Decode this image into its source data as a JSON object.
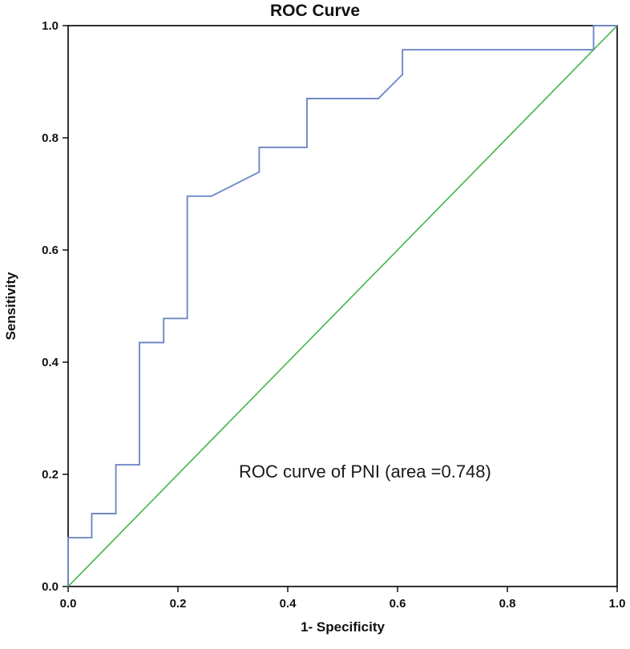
{
  "chart_data": {
    "type": "line",
    "title": "ROC Curve",
    "xlabel": "1- Specificity",
    "ylabel": "Sensitivity",
    "annotation": "ROC curve of PNI (area =0.748)",
    "xlim": [
      0,
      1
    ],
    "ylim": [
      0,
      1
    ],
    "xtick_labels": [
      "0.0",
      "0.2",
      "0.4",
      "0.6",
      "0.8",
      "1.0"
    ],
    "ytick_labels": [
      "0.0",
      "0.2",
      "0.4",
      "0.6",
      "0.8",
      "1.0"
    ],
    "grid": false,
    "legend": "none",
    "colors": {
      "roc_curve": "#6f88c5",
      "reference_line": "#3fb649",
      "axis": "#000000"
    },
    "series": [
      {
        "name": "ROC curve of PNI",
        "color": "#6f88c5",
        "x": [
          0,
          0,
          0.043,
          0.043,
          0.087,
          0.087,
          0.13,
          0.13,
          0.174,
          0.174,
          0.217,
          0.217,
          0.261,
          0.348,
          0.348,
          0.435,
          0.435,
          0.565,
          0.609,
          0.609,
          0.957,
          0.957,
          1.0
        ],
        "y": [
          0,
          0.087,
          0.087,
          0.13,
          0.13,
          0.217,
          0.217,
          0.435,
          0.435,
          0.478,
          0.478,
          0.696,
          0.696,
          0.739,
          0.783,
          0.783,
          0.87,
          0.87,
          0.913,
          0.957,
          0.957,
          1.0,
          1.0
        ]
      },
      {
        "name": "Reference line",
        "color": "#3fb649",
        "x": [
          0,
          1
        ],
        "y": [
          0,
          1
        ]
      }
    ],
    "area_under_curve": 0.748
  }
}
